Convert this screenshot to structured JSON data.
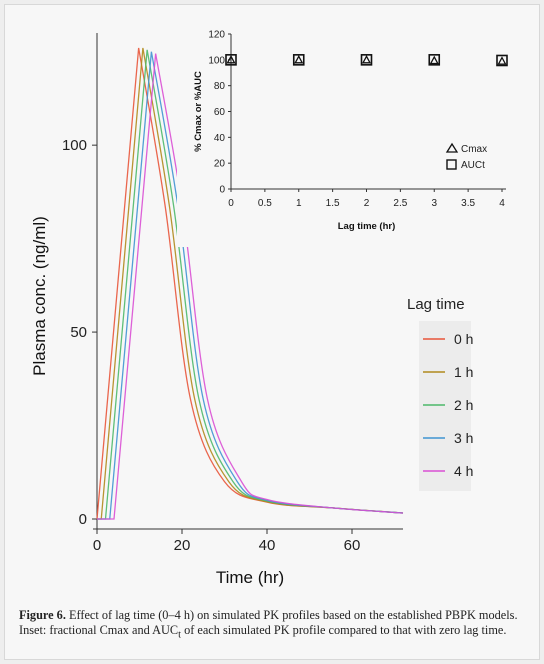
{
  "chart_data": [
    {
      "type": "line",
      "xlabel": "Time (hr)",
      "ylabel": "Plasma conc. (ng/ml)",
      "xlim": [
        0,
        72
      ],
      "ylim": [
        0,
        130
      ],
      "xticks": [
        0,
        20,
        40,
        60
      ],
      "yticks": [
        0,
        50,
        100
      ],
      "grid": false,
      "legend": {
        "title": "Lag time",
        "position": "right",
        "entries": [
          "0 h",
          "1 h",
          "2 h",
          "3 h",
          "4 h"
        ]
      },
      "series": [
        {
          "name": "0 h",
          "lag": 0,
          "color": "#e8553a",
          "tmax": 9.8,
          "cmax": 126,
          "x": [
            0,
            9.8,
            16,
            22,
            30,
            40,
            55,
            72
          ],
          "y": [
            0,
            126,
            84,
            32,
            10,
            4.5,
            3.0,
            1.6
          ]
        },
        {
          "name": "1 h",
          "lag": 1,
          "color": "#b08a1c",
          "tmax": 10.8,
          "cmax": 126,
          "x": [
            1,
            10.8,
            17,
            23,
            31,
            40,
            55,
            72
          ],
          "y": [
            0,
            126,
            84,
            32,
            10,
            4.6,
            3.0,
            1.6
          ]
        },
        {
          "name": "2 h",
          "lag": 2,
          "color": "#4db869",
          "tmax": 11.8,
          "cmax": 125.5,
          "x": [
            2,
            11.8,
            18,
            24,
            32,
            40,
            55,
            72
          ],
          "y": [
            0,
            125.5,
            84,
            32,
            10,
            4.8,
            3.0,
            1.6
          ]
        },
        {
          "name": "3 h",
          "lag": 3,
          "color": "#3f93d2",
          "tmax": 12.8,
          "cmax": 125,
          "x": [
            3,
            12.8,
            19,
            25,
            33,
            40,
            55,
            72
          ],
          "y": [
            0,
            125,
            84,
            32,
            10,
            5.0,
            3.0,
            1.6
          ]
        },
        {
          "name": "4 h",
          "lag": 4,
          "color": "#d94fd4",
          "tmax": 13.8,
          "cmax": 124.5,
          "x": [
            4,
            13.8,
            20,
            26,
            34,
            40,
            55,
            72
          ],
          "y": [
            0,
            124.5,
            84,
            32,
            10,
            5.2,
            3.0,
            1.6
          ]
        }
      ]
    },
    {
      "type": "scatter",
      "xlabel": "Lag time (hr)",
      "ylabel": "% Cmax or %AUC",
      "xlim": [
        0,
        4
      ],
      "ylim": [
        0,
        120
      ],
      "xticks": [
        "0",
        "0.5",
        "1",
        "1.5",
        "2",
        "2.5",
        "3",
        "3.5",
        "4"
      ],
      "yticks": [
        "0",
        "20",
        "40",
        "60",
        "80",
        "100",
        "120"
      ],
      "legend": {
        "position": "bottom-right",
        "entries": [
          "Cmax",
          "AUCt"
        ]
      },
      "series": [
        {
          "name": "Cmax",
          "marker": "triangle",
          "x": [
            0,
            1,
            2,
            3,
            4
          ],
          "y": [
            100,
            100,
            100,
            99.5,
            99
          ]
        },
        {
          "name": "AUCt",
          "marker": "square",
          "x": [
            0,
            1,
            2,
            3,
            4
          ],
          "y": [
            100,
            100,
            100,
            100,
            99.5
          ]
        }
      ]
    }
  ],
  "caption": {
    "label": "Figure 6.",
    "text": "Effect of lag time (0–4 h) on simulated PK profiles based on the established PBPK models. Inset: fractional Cmax and AUC",
    "subscript": "t",
    "text_end": " of each simulated PK profile compared to that with zero lag time."
  }
}
